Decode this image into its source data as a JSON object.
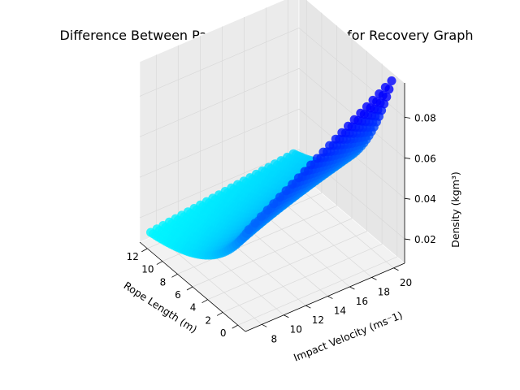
{
  "chart_data": {
    "type": "scatter",
    "title": "Difference Between Parachute Rope Length for Recovery Graph",
    "xlabel": "Rope Length (m)",
    "ylabel": "Impact Velocity (ms⁻1)",
    "zlabel": "Density (kgm³)",
    "x_ticks": [
      "0",
      "2",
      "4",
      "6",
      "8",
      "10",
      "12"
    ],
    "y_ticks": [
      "8",
      "10",
      "12",
      "14",
      "16",
      "18",
      "20"
    ],
    "z_ticks": [
      "0.02",
      "0.04",
      "0.06",
      "0.08"
    ],
    "xlim": [
      -1,
      13
    ],
    "ylim": [
      6.5,
      21
    ],
    "zlim": [
      0.008,
      0.097
    ],
    "grid": true,
    "colormap": [
      "#00ffff",
      "#0000ff"
    ],
    "series_note": "",
    "data_description": {
      "rope_length_range": [
        0,
        13
      ],
      "impact_velocity_range": [
        7.5,
        20.5
      ],
      "density_range": [
        0.01,
        0.096
      ]
    }
  }
}
